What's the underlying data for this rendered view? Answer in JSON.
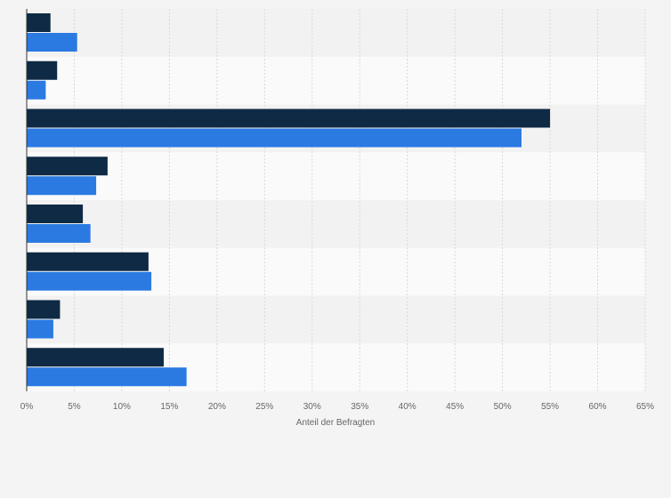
{
  "chart_data": {
    "type": "bar",
    "orientation": "horizontal",
    "categories": [
      "",
      "",
      "",
      "",
      "",
      "",
      "",
      ""
    ],
    "series": [
      {
        "color": "#0f2a44",
        "values": [
          2.5,
          3.2,
          55.0,
          8.5,
          5.9,
          12.8,
          3.5,
          14.4
        ]
      },
      {
        "color": "#2a7ae2",
        "values": [
          5.3,
          2.0,
          52.0,
          7.3,
          6.7,
          13.1,
          2.8,
          16.8
        ]
      }
    ],
    "xlabel": "Anteil der Befragten",
    "ylabel": "",
    "title": "",
    "xlim": [
      0,
      65
    ],
    "xticks": [
      "0%",
      "5%",
      "10%",
      "15%",
      "20%",
      "25%",
      "30%",
      "35%",
      "40%",
      "45%",
      "50%",
      "55%",
      "60%",
      "65%"
    ],
    "grid": true,
    "legend": "none"
  }
}
